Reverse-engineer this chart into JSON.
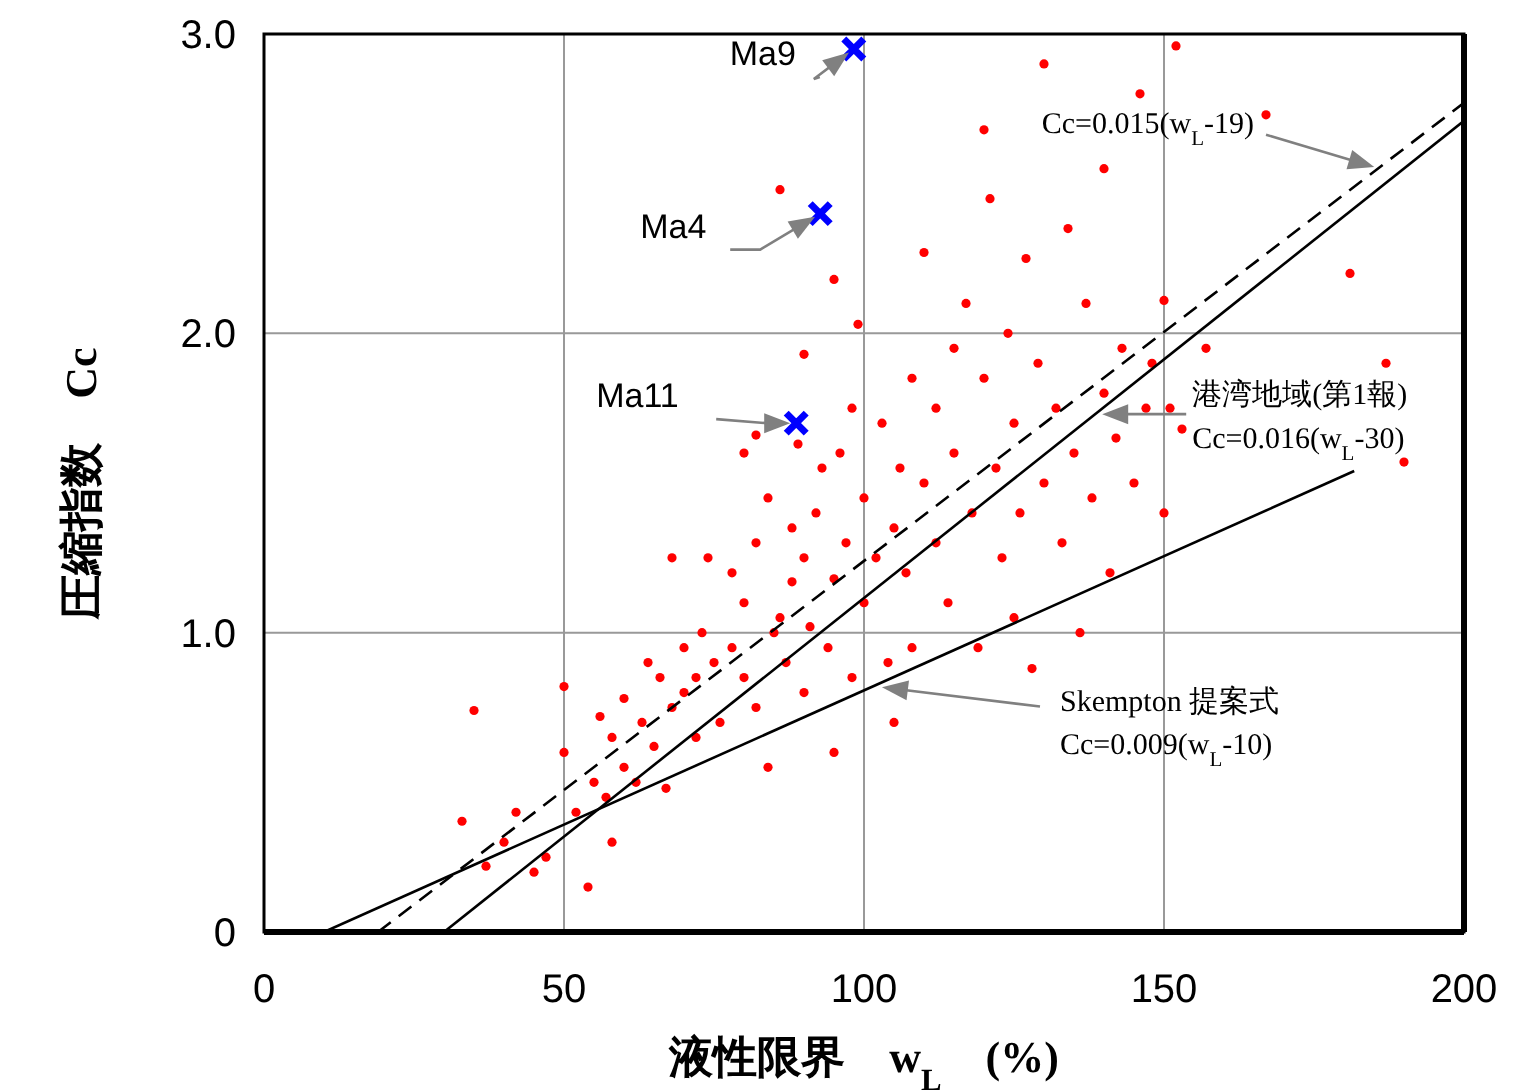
{
  "chart_data": {
    "type": "scatter",
    "xlabel": "液性限界　w$_{L}$　(%)",
    "ylabel": "圧縮指数　Cc",
    "xlim": [
      0,
      200
    ],
    "xticks": [
      0,
      50,
      100,
      150,
      200
    ],
    "ylim": [
      0,
      3
    ],
    "yticks": [
      0,
      {
        "value": 1,
        "label": "1.0"
      },
      {
        "value": 2,
        "label": "2.0"
      },
      {
        "value": 3,
        "label": "3.0"
      }
    ],
    "grid": true,
    "series": [
      {
        "type": "scatter",
        "color": "#ff0000",
        "marker": "circle",
        "x": [
          33,
          35,
          37,
          40,
          42,
          45,
          47,
          50,
          50,
          52,
          54,
          55,
          56,
          57,
          58,
          60,
          60,
          62,
          63,
          64,
          65,
          66,
          67,
          68,
          70,
          70,
          72,
          72,
          73,
          74,
          75,
          76,
          78,
          78,
          80,
          80,
          82,
          82,
          84,
          84,
          85,
          86,
          86,
          87,
          88,
          88,
          89,
          90,
          90,
          90,
          91,
          92,
          93,
          94,
          95,
          95,
          96,
          97,
          98,
          98,
          99,
          100,
          100,
          102,
          103,
          104,
          105,
          106,
          107,
          108,
          108,
          110,
          110,
          112,
          112,
          114,
          115,
          115,
          117,
          118,
          119,
          120,
          120,
          121,
          122,
          123,
          124,
          125,
          126,
          127,
          128,
          129,
          130,
          130,
          132,
          133,
          134,
          135,
          136,
          137,
          138,
          140,
          140,
          141,
          142,
          143,
          145,
          146,
          147,
          148,
          150,
          150,
          152,
          153,
          157,
          167,
          181,
          187,
          190,
          151,
          80,
          82,
          68,
          58,
          95,
          105,
          125
        ],
        "values": [
          0.37,
          0.74,
          0.22,
          0.3,
          0.4,
          0.2,
          0.25,
          0.82,
          0.6,
          0.4,
          0.15,
          0.5,
          0.72,
          0.45,
          0.65,
          0.78,
          0.55,
          0.5,
          0.7,
          0.9,
          0.62,
          0.85,
          0.48,
          0.75,
          0.95,
          0.8,
          0.85,
          0.65,
          1.0,
          1.25,
          0.9,
          0.7,
          1.2,
          0.95,
          1.1,
          0.85,
          0.75,
          1.3,
          0.55,
          1.45,
          1.0,
          2.48,
          1.05,
          0.9,
          1.35,
          1.17,
          1.63,
          0.8,
          1.25,
          1.93,
          1.02,
          1.4,
          1.55,
          0.95,
          1.18,
          2.18,
          1.6,
          1.3,
          0.85,
          1.75,
          2.03,
          1.45,
          1.1,
          1.25,
          1.7,
          0.9,
          1.35,
          1.55,
          1.2,
          1.85,
          0.95,
          1.5,
          2.27,
          1.3,
          1.75,
          1.1,
          1.6,
          1.95,
          2.1,
          1.4,
          0.95,
          1.85,
          2.68,
          2.45,
          1.55,
          1.25,
          2.0,
          1.7,
          1.4,
          2.25,
          0.88,
          1.9,
          1.5,
          2.9,
          1.75,
          1.3,
          2.35,
          1.6,
          1.0,
          2.1,
          1.45,
          1.8,
          2.55,
          1.2,
          1.65,
          1.95,
          1.5,
          2.8,
          1.75,
          1.9,
          1.4,
          2.11,
          2.96,
          1.68,
          1.95,
          2.73,
          2.2,
          1.9,
          1.57,
          1.75,
          1.6,
          1.66,
          1.25,
          0.3,
          0.6,
          0.7,
          1.05
        ]
      },
      {
        "type": "scatter",
        "color": "#0000ff",
        "marker": "cross",
        "x": [
          98.3,
          92.7,
          88.7
        ],
        "values": [
          2.95,
          2.4,
          1.7
        ]
      },
      {
        "type": "line",
        "color": "#000000",
        "line_style": "dashed",
        "x": [
          19,
          200
        ],
        "values": [
          0,
          2.77
        ]
      },
      {
        "type": "line",
        "color": "#000000",
        "line_style": "solid",
        "x": [
          30,
          200
        ],
        "values": [
          0,
          2.71
        ]
      },
      {
        "type": "line",
        "color": "#000000",
        "line_style": "solid",
        "x": [
          10,
          181.7
        ],
        "values": [
          0,
          1.54
        ]
      }
    ],
    "annotations": [
      {
        "text": "Ma9",
        "x": 98.3,
        "y": 2.95
      },
      {
        "text": "Ma4",
        "x": 92.7,
        "y": 2.4
      },
      {
        "text": "Ma11",
        "x": 88.7,
        "y": 1.7
      },
      {
        "text": "Cc=0.015(w$_{L}$-19)",
        "x": 186,
        "y": 2.55
      },
      {
        "text": "港湾地域(第1報)\nCc=0.016(w$_{L}$-30)",
        "x": 138.7,
        "y": 1.73
      },
      {
        "text": "Skempton 提案式\nCc=0.009(w$_{L}$-10)",
        "x": 102,
        "y": 0.82
      }
    ]
  }
}
